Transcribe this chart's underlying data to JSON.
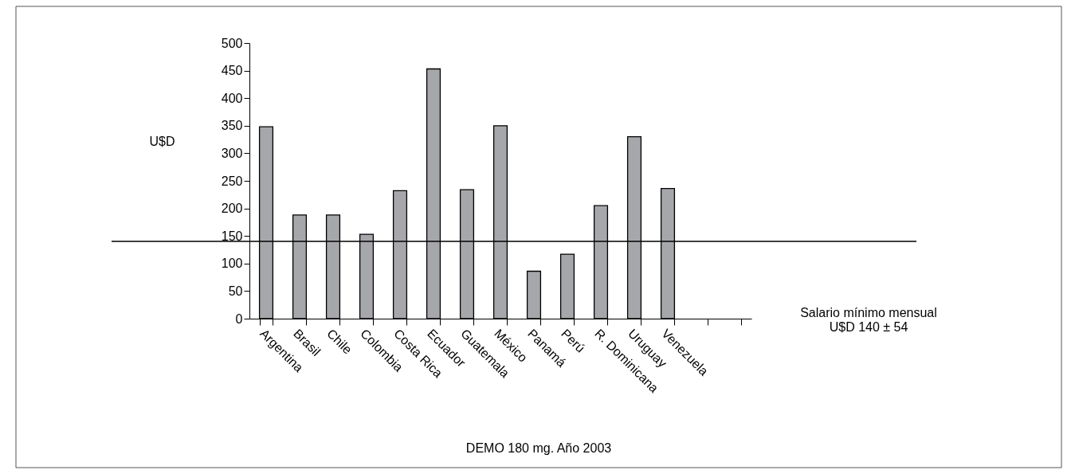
{
  "chart_data": {
    "type": "bar",
    "title": "DEMO 180 mg. Año 2003",
    "ylabel": "U$D",
    "categories": [
      "Argentina",
      "Brasil",
      "Chile",
      "Colombia",
      "Costa Rica",
      "Ecuador",
      "Guatemala",
      "México",
      "Panamá",
      "Perú",
      "R. Dominicana",
      "Uruguay",
      "Venezuela",
      null,
      null
    ],
    "values": [
      348,
      188,
      188,
      153,
      232,
      453,
      234,
      350,
      86,
      117,
      205,
      330,
      236,
      null,
      null
    ],
    "color": "#a6a7ab",
    "ylim": [
      0,
      500
    ],
    "yticks": [
      0,
      50,
      100,
      150,
      200,
      250,
      300,
      350,
      400,
      450,
      500
    ],
    "grid": false,
    "ref_lines": [
      {
        "axis": "y",
        "value": 140,
        "label": "Salario mínimo mensual\nU$D 140 ± 54",
        "color": "#000000",
        "line_style": "solid"
      }
    ]
  }
}
